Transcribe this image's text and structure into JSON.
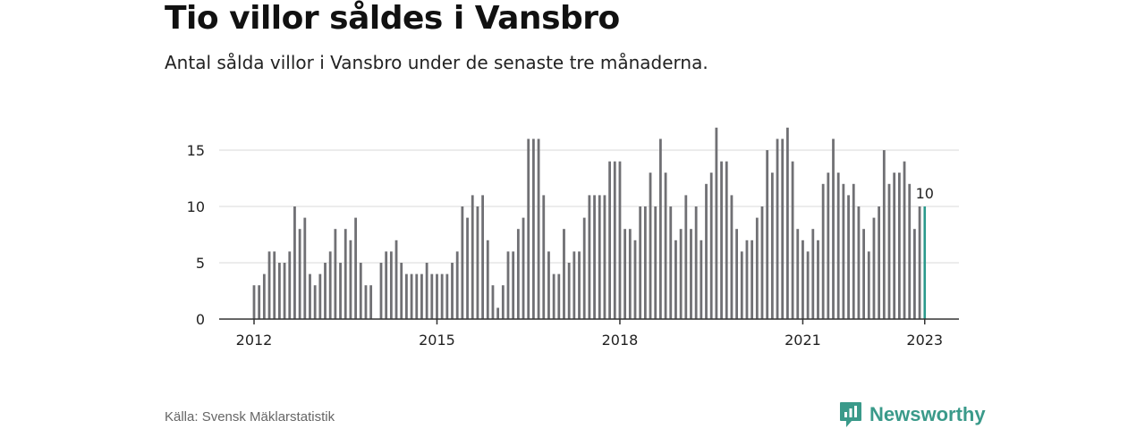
{
  "header": {
    "title": "Tio villor såldes i Vansbro",
    "subtitle": "Antal sålda villor i Vansbro under de senaste tre månaderna."
  },
  "footer": {
    "source": "Källa: Svensk Mäklarstatistik",
    "brand": "Newsworthy",
    "brand_icon": "newsworthy-logo-icon"
  },
  "colors": {
    "bar": "#707074",
    "highlight": "#2a9a8c",
    "grid": "#d8d8d8",
    "axis": "#333333",
    "brand": "#3a9a8a"
  },
  "chart_data": {
    "type": "bar",
    "title": "Tio villor såldes i Vansbro",
    "subtitle": "Antal sålda villor i Vansbro under de senaste tre månaderna.",
    "xlabel": "",
    "ylabel": "",
    "ylim": [
      0,
      17
    ],
    "yticks": [
      0,
      5,
      10,
      15
    ],
    "xticks": [
      "2012",
      "2015",
      "2018",
      "2021",
      "2023"
    ],
    "grid": true,
    "start_month": "2012-01",
    "end_month": "2023-01",
    "frequency": "monthly",
    "values": [
      3,
      3,
      4,
      6,
      6,
      5,
      5,
      6,
      10,
      8,
      9,
      4,
      3,
      4,
      5,
      6,
      8,
      5,
      8,
      7,
      9,
      5,
      3,
      3,
      null,
      5,
      6,
      6,
      7,
      5,
      4,
      4,
      4,
      4,
      5,
      4,
      4,
      4,
      4,
      5,
      6,
      10,
      9,
      11,
      10,
      11,
      7,
      3,
      1,
      3,
      6,
      6,
      8,
      9,
      16,
      16,
      16,
      11,
      6,
      4,
      4,
      8,
      5,
      6,
      6,
      9,
      11,
      11,
      11,
      11,
      14,
      14,
      14,
      8,
      8,
      7,
      10,
      10,
      13,
      10,
      16,
      13,
      10,
      7,
      8,
      11,
      8,
      10,
      7,
      12,
      13,
      17,
      14,
      14,
      11,
      8,
      6,
      7,
      7,
      9,
      10,
      15,
      13,
      16,
      16,
      17,
      14,
      8,
      7,
      6,
      8,
      7,
      12,
      13,
      16,
      13,
      12,
      11,
      12,
      10,
      8,
      6,
      9,
      10,
      15,
      12,
      13,
      13,
      14,
      12,
      8,
      10,
      10
    ],
    "highlight_label": "10"
  }
}
